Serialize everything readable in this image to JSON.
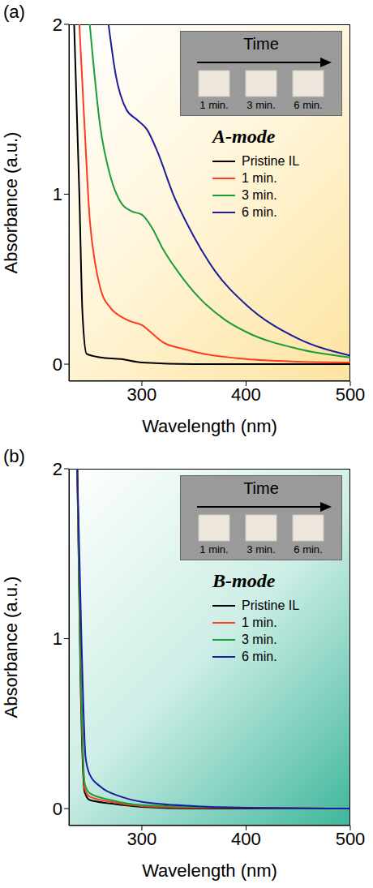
{
  "chart_data": [
    {
      "type": "line",
      "panel_label": "(a)",
      "mode_label": "A-mode",
      "x_label": "Wavelength (nm)",
      "y_label": "Absorbance (a.u.)",
      "xlim": [
        230,
        500
      ],
      "xticks": [
        300,
        400,
        500
      ],
      "ylim": [
        -0.1,
        2
      ],
      "yticks": [
        0,
        1,
        2
      ],
      "grid": false,
      "legend": "right",
      "inset": {
        "title": "Time",
        "labels": [
          "1 min.",
          "3 min.",
          "6 min."
        ]
      },
      "series": [
        {
          "name": "Pristine IL",
          "color": "#000000",
          "x": [
            235,
            240,
            243,
            247,
            260,
            280,
            300,
            350,
            500
          ],
          "values": [
            2,
            1.0,
            0.3,
            0.06,
            0.04,
            0.03,
            0.01,
            0,
            0
          ]
        },
        {
          "name": "1 min.",
          "color": "#ff3b1f",
          "x": [
            240,
            245,
            250,
            255,
            260,
            270,
            280,
            290,
            300,
            310,
            320,
            340,
            360,
            400,
            450,
            500
          ],
          "values": [
            2.0,
            1.4,
            0.85,
            0.6,
            0.45,
            0.33,
            0.28,
            0.25,
            0.23,
            0.18,
            0.13,
            0.09,
            0.06,
            0.03,
            0.015,
            0.01
          ]
        },
        {
          "name": "3 min.",
          "color": "#1a9e3a",
          "x": [
            250,
            260,
            270,
            280,
            290,
            300,
            310,
            320,
            340,
            360,
            380,
            400,
            450,
            500
          ],
          "values": [
            2.0,
            1.4,
            1.1,
            0.95,
            0.9,
            0.88,
            0.8,
            0.68,
            0.5,
            0.36,
            0.26,
            0.19,
            0.09,
            0.04
          ]
        },
        {
          "name": "6 min.",
          "color": "#1c1c9e",
          "x": [
            268,
            275,
            285,
            295,
            305,
            315,
            330,
            350,
            370,
            400,
            450,
            500
          ],
          "values": [
            2.0,
            1.7,
            1.5,
            1.44,
            1.38,
            1.25,
            1.0,
            0.75,
            0.55,
            0.35,
            0.15,
            0.05
          ]
        }
      ]
    },
    {
      "type": "line",
      "panel_label": "(b)",
      "mode_label": "B-mode",
      "x_label": "Wavelength (nm)",
      "y_label": "Absorbance (a.u.)",
      "xlim": [
        230,
        500
      ],
      "xticks": [
        300,
        400,
        500
      ],
      "ylim": [
        -0.1,
        2
      ],
      "yticks": [
        0,
        1,
        2
      ],
      "grid": false,
      "legend": "right",
      "inset": {
        "title": "Time",
        "labels": [
          "1 min.",
          "3 min.",
          "6 min."
        ]
      },
      "series": [
        {
          "name": "Pristine IL",
          "color": "#000000",
          "x": [
            238,
            241,
            245,
            250,
            270,
            300,
            350,
            500
          ],
          "values": [
            2,
            0.8,
            0.1,
            0.05,
            0.03,
            0.01,
            0,
            0
          ]
        },
        {
          "name": "1 min.",
          "color": "#ff3b1f",
          "x": [
            238,
            241,
            245,
            250,
            270,
            300,
            350,
            500
          ],
          "values": [
            2,
            0.9,
            0.12,
            0.07,
            0.04,
            0.015,
            0.005,
            0
          ]
        },
        {
          "name": "3 min.",
          "color": "#1a9e3a",
          "x": [
            238,
            241,
            245,
            250,
            270,
            300,
            350,
            500
          ],
          "values": [
            2,
            0.95,
            0.15,
            0.09,
            0.05,
            0.02,
            0.01,
            0
          ]
        },
        {
          "name": "6 min.",
          "color": "#1c1c9e",
          "x": [
            238,
            242,
            246,
            250,
            260,
            280,
            300,
            350,
            400,
            500
          ],
          "values": [
            2,
            1.0,
            0.3,
            0.2,
            0.13,
            0.07,
            0.04,
            0.015,
            0.005,
            0
          ]
        }
      ]
    }
  ]
}
